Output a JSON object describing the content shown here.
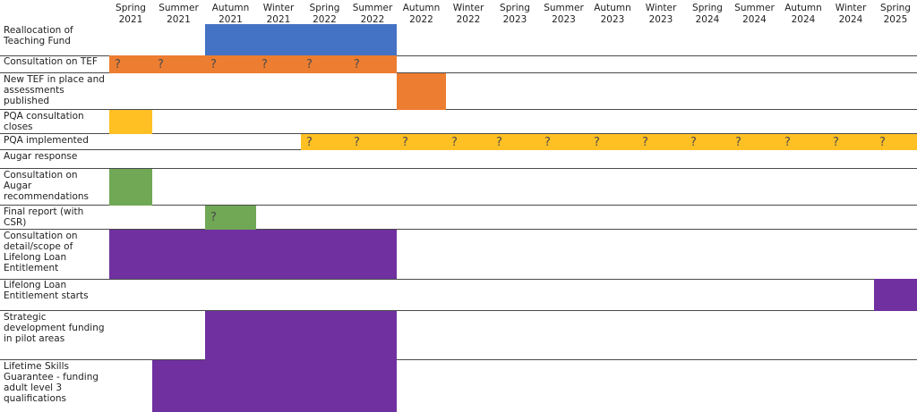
{
  "colors": {
    "blue": "#4472c4",
    "orange": "#ed7d31",
    "yellow": "#ffc024",
    "green": "#70a855",
    "purple": "#7030a0"
  },
  "seasons": [
    "Spring\n2021",
    "Summer\n2021",
    "Autumn\n2021",
    "Winter\n2021",
    "Spring\n2022",
    "Summer\n2022",
    "Autumn\n2022",
    "Winter\n2022",
    "Spring\n2023",
    "Summer\n2023",
    "Autumn\n2023",
    "Winter\n2023",
    "Spring\n2024",
    "Summer\n2024",
    "Autumn\n2024",
    "Winter\n2024",
    "Spring\n2025"
  ],
  "rows": [
    {
      "label": "Reallocation of Teaching Fund",
      "start": 2,
      "end": 5,
      "color": "blue",
      "marks": []
    },
    {
      "label": "Consultation on TEF",
      "start": 0,
      "end": 5,
      "color": "orange",
      "marks": [
        "?",
        "?",
        "?",
        "?",
        "?",
        "?"
      ]
    },
    {
      "label": "New TEF in place and assessments published",
      "start": 6,
      "end": 6,
      "color": "orange",
      "marks": []
    },
    {
      "label": "PQA consultation closes",
      "start": 0,
      "end": 0,
      "color": "yellow",
      "marks": []
    },
    {
      "label": "PQA implemented",
      "start": 4,
      "end": 16,
      "color": "yellow",
      "marks": [
        "?",
        "?",
        "?",
        "?",
        "?",
        "?",
        "?",
        "?",
        "?",
        "?",
        "?",
        "?",
        "?"
      ]
    },
    {
      "label": "Augar response",
      "start": null,
      "end": null,
      "color": null,
      "marks": []
    },
    {
      "label": "Consultation on Augar recommendations",
      "start": 0,
      "end": 0,
      "color": "green",
      "marks": []
    },
    {
      "label": "Final report (with CSR)",
      "start": 2,
      "end": 2,
      "color": "green",
      "marks": [
        "?"
      ]
    },
    {
      "label": "Consultation on detail/scope of Lifelong Loan Entitlement",
      "start": 0,
      "end": 5,
      "color": "purple",
      "marks": []
    },
    {
      "label": "Lifelong Loan Entitlement starts",
      "start": 16,
      "end": 16,
      "color": "purple",
      "marks": []
    },
    {
      "label": "Strategic development funding in pilot areas",
      "start": 2,
      "end": 5,
      "color": "purple",
      "marks": []
    },
    {
      "label": "Lifetime Skills Guarantee - funding adult level 3 qualifications",
      "start": 1,
      "end": 5,
      "color": "purple",
      "marks": []
    }
  ]
}
